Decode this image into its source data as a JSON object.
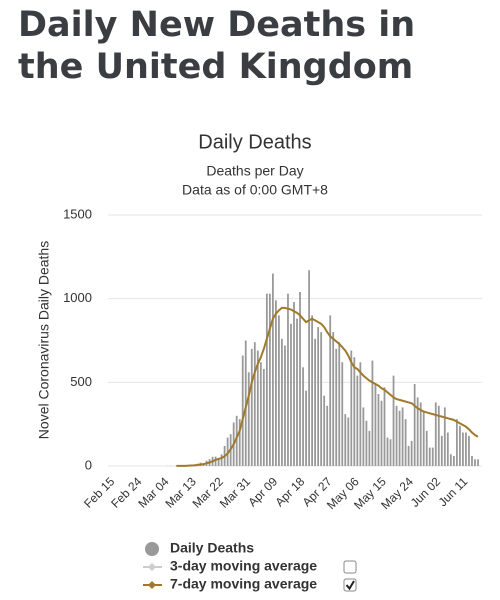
{
  "header": {
    "title": "Daily New Deaths in the United Kingdom"
  },
  "chart_data": {
    "type": "bar",
    "title": "Daily Deaths",
    "subtitle": "Deaths per Day",
    "note": "Data as of 0:00 GMT+8",
    "y_label": "Novel Coronavirus Daily Deaths",
    "categories": [
      "Feb 15",
      null,
      null,
      null,
      null,
      null,
      null,
      null,
      null,
      "Feb 24",
      null,
      null,
      null,
      null,
      null,
      null,
      null,
      null,
      "Mar 04",
      null,
      null,
      null,
      null,
      null,
      null,
      null,
      null,
      "Mar 13",
      null,
      null,
      null,
      null,
      null,
      null,
      null,
      null,
      "Mar 22",
      null,
      null,
      null,
      null,
      null,
      null,
      null,
      null,
      "Mar 31",
      null,
      null,
      null,
      null,
      null,
      null,
      null,
      null,
      "Apr 09",
      null,
      null,
      null,
      null,
      null,
      null,
      null,
      null,
      "Apr 18",
      null,
      null,
      null,
      null,
      null,
      null,
      null,
      null,
      "Apr 27",
      null,
      null,
      null,
      null,
      null,
      null,
      null,
      null,
      "May 06",
      null,
      null,
      null,
      null,
      null,
      null,
      null,
      null,
      "May 15",
      null,
      null,
      null,
      null,
      null,
      null,
      null,
      null,
      "May 24",
      null,
      null,
      null,
      null,
      null,
      null,
      null,
      null,
      "Jun 02",
      null,
      null,
      null,
      null,
      null,
      null,
      null,
      null,
      "Jun 11",
      null,
      null,
      null,
      null,
      null
    ],
    "series": [
      {
        "name": "Daily Deaths",
        "color": "#999999",
        "kind": "bar",
        "visible": true,
        "values": [
          0,
          0,
          0,
          0,
          0,
          0,
          0,
          0,
          0,
          0,
          0,
          0,
          0,
          0,
          0,
          0,
          0,
          0,
          0,
          1,
          1,
          0,
          2,
          1,
          1,
          2,
          2,
          1,
          10,
          14,
          20,
          16,
          32,
          41,
          55,
          56,
          48,
          70,
          120,
          170,
          190,
          260,
          300,
          280,
          660,
          750,
          560,
          700,
          740,
          690,
          620,
          580,
          1030,
          1030,
          1150,
          990,
          900,
          760,
          720,
          1030,
          850,
          980,
          880,
          1040,
          590,
          450,
          1170,
          900,
          760,
          830,
          800,
          420,
          360,
          900,
          800,
          700,
          740,
          620,
          310,
          290,
          690,
          650,
          540,
          620,
          350,
          270,
          210,
          630,
          490,
          430,
          390,
          470,
          170,
          160,
          540,
          360,
          330,
          350,
          280,
          120,
          150,
          490,
          410,
          380,
          320,
          210,
          110,
          110,
          380,
          360,
          180,
          350,
          200,
          70,
          60,
          280,
          240,
          200,
          200,
          180,
          60,
          40,
          40
        ]
      },
      {
        "name": "3-day moving average",
        "color": "#cccccc",
        "kind": "line",
        "visible": false
      },
      {
        "name": "7-day moving average",
        "color": "#a07a2a",
        "kind": "line",
        "visible": true,
        "values": [
          null,
          null,
          null,
          null,
          null,
          null,
          null,
          null,
          null,
          null,
          null,
          null,
          null,
          null,
          null,
          null,
          null,
          null,
          null,
          null,
          null,
          null,
          1,
          1,
          1,
          1,
          2,
          3,
          4,
          6,
          9,
          11,
          16,
          21,
          28,
          36,
          42,
          48,
          58,
          75,
          100,
          130,
          170,
          210,
          280,
          350,
          420,
          500,
          560,
          610,
          650,
          700,
          760,
          820,
          880,
          910,
          930,
          945,
          945,
          940,
          935,
          925,
          915,
          900,
          880,
          860,
          870,
          880,
          870,
          860,
          850,
          830,
          800,
          775,
          760,
          745,
          730,
          710,
          690,
          660,
          620,
          590,
          580,
          560,
          540,
          525,
          510,
          500,
          490,
          480,
          465,
          455,
          440,
          425,
          410,
          400,
          395,
          390,
          385,
          380,
          375,
          360,
          345,
          335,
          325,
          320,
          315,
          310,
          305,
          300,
          295,
          290,
          285,
          280,
          275,
          265,
          255,
          245,
          235,
          220,
          200,
          185,
          175
        ]
      }
    ],
    "ylim": [
      0,
      1500
    ],
    "yticks": [
      0,
      500,
      1000,
      1500
    ],
    "grid": true
  }
}
